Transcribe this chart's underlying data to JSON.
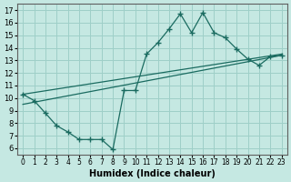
{
  "xlabel": "Humidex (Indice chaleur)",
  "background_color": "#c5e8e2",
  "grid_color": "#9ecfc8",
  "line_color": "#1a6b60",
  "xlim": [
    -0.5,
    23.5
  ],
  "ylim": [
    5.5,
    17.5
  ],
  "xticks": [
    0,
    1,
    2,
    3,
    4,
    5,
    6,
    7,
    8,
    9,
    10,
    11,
    12,
    13,
    14,
    15,
    16,
    17,
    18,
    19,
    20,
    21,
    22,
    23
  ],
  "yticks": [
    6,
    7,
    8,
    9,
    10,
    11,
    12,
    13,
    14,
    15,
    16,
    17
  ],
  "line1_x": [
    0,
    1,
    2,
    3,
    4,
    5,
    6,
    7,
    8,
    9,
    10,
    11,
    12,
    13,
    14,
    15,
    16,
    17,
    18,
    19,
    20,
    21,
    22,
    23
  ],
  "line1_y": [
    10.3,
    9.8,
    8.8,
    7.8,
    7.3,
    6.7,
    6.7,
    6.7,
    5.9,
    10.6,
    10.6,
    13.5,
    14.4,
    15.5,
    16.7,
    15.2,
    16.8,
    15.2,
    14.8,
    13.9,
    13.1,
    12.6,
    13.3,
    13.4
  ],
  "line2_x": [
    0,
    23
  ],
  "line2_y": [
    9.5,
    13.4
  ],
  "line3_x": [
    0,
    23
  ],
  "line3_y": [
    10.3,
    13.5
  ]
}
